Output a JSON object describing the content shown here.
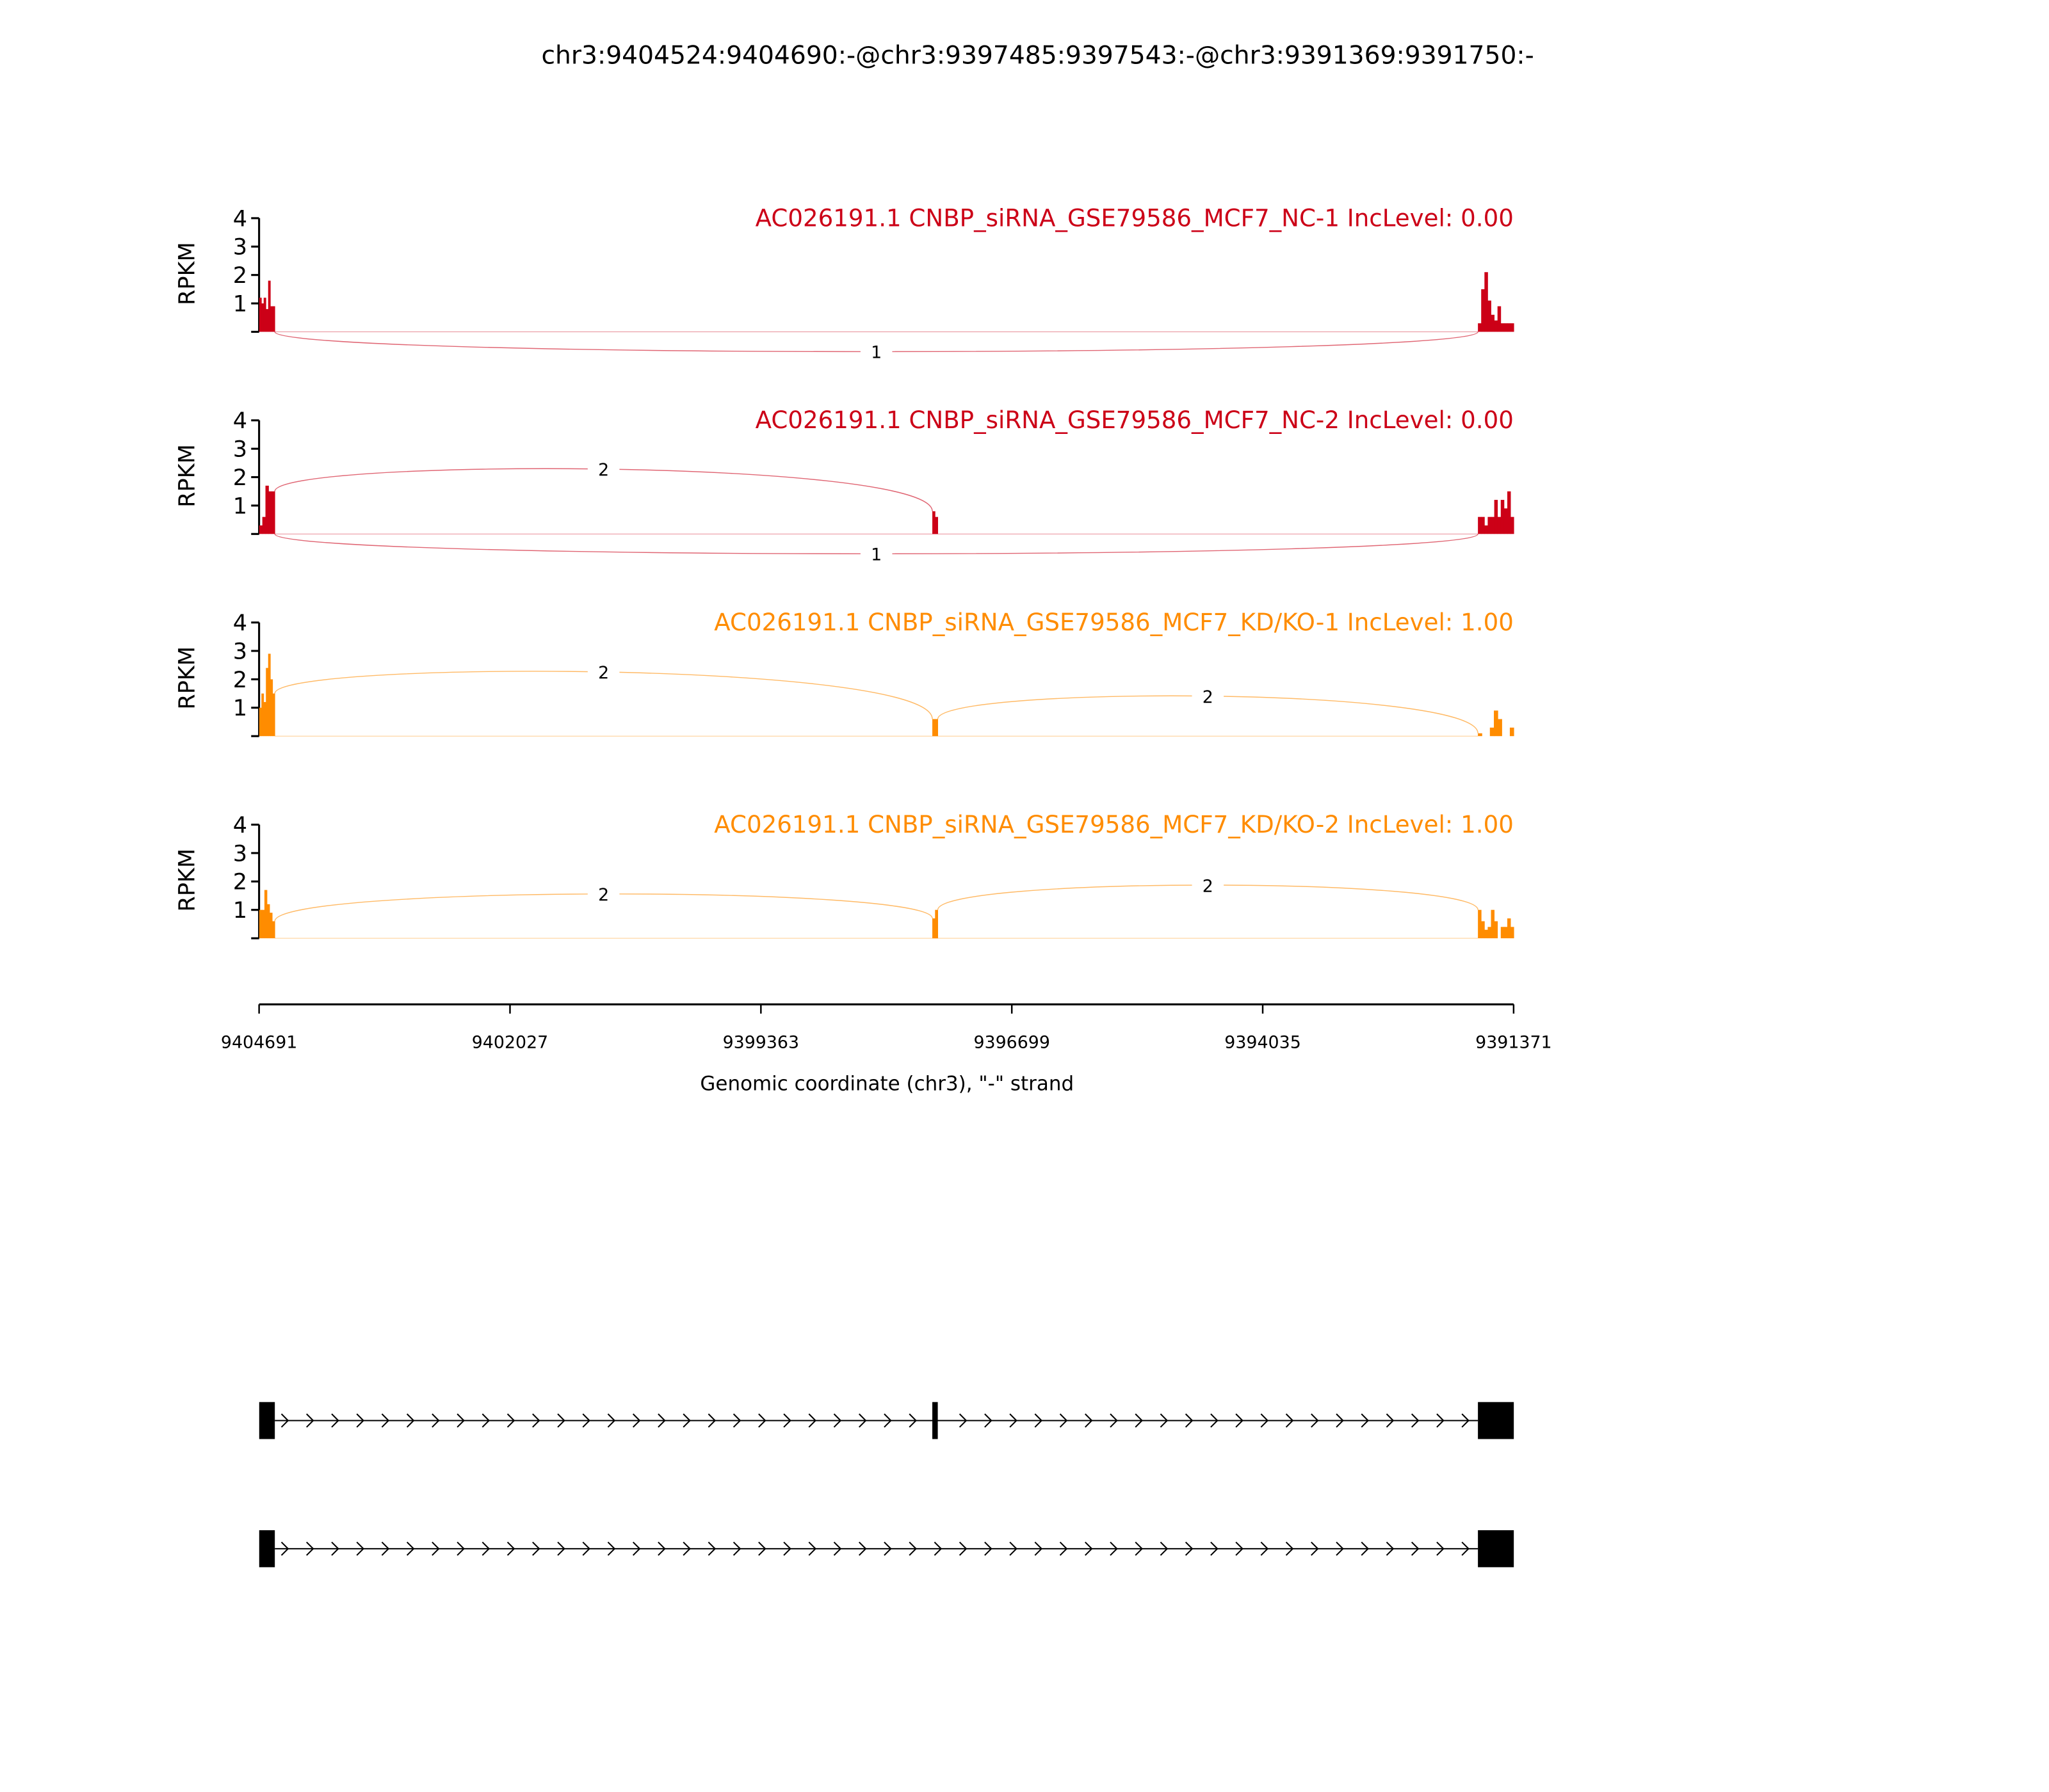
{
  "chart_data": {
    "type": "bar",
    "title": "chr3:9404524:9404690:-@chr3:9397485:9397543:-@chr3:9391369:9391750:-",
    "xlabel": "Genomic coordinate (chr3), \"-\" strand",
    "ylabel": "RPKM",
    "xlim": [
      9404691,
      9391371
    ],
    "x_ticks": [
      "9404691",
      "9402027",
      "9399363",
      "9396699",
      "9394035",
      "9391371"
    ],
    "ylim": [
      0,
      4
    ],
    "y_ticks": [
      "1",
      "2",
      "3",
      "4"
    ],
    "grid": false,
    "exons": [
      {
        "start": 9404524,
        "end": 9404690
      },
      {
        "start": 9397485,
        "end": 9397543
      },
      {
        "start": 9391369,
        "end": 9391750
      }
    ],
    "tracks": [
      {
        "label": "AC026191.1 CNBP_siRNA_GSE79586_MCF7_NC-1 IncLevel: 0.00",
        "color": "#cc0017",
        "coverage": [
          [
            1.2,
            1.0,
            1.2,
            0.8,
            1.8,
            0.9,
            0.9
          ],
          [],
          [
            0.3,
            1.5,
            2.1,
            1.1,
            0.6,
            0.4,
            0.9,
            0.3,
            0.3,
            0.3,
            0.3
          ]
        ],
        "junctions": [
          {
            "from": 0,
            "to": 2,
            "count": "1",
            "side": "below"
          }
        ]
      },
      {
        "label": "AC026191.1 CNBP_siRNA_GSE79586_MCF7_NC-2 IncLevel: 0.00",
        "color": "#cc0017",
        "coverage": [
          [
            0.3,
            0.6,
            1.7,
            1.5,
            1.5
          ],
          [
            0.8,
            0.6
          ],
          [
            0.6,
            0.6,
            0.3,
            0.6,
            0.6,
            1.2,
            0.6,
            1.2,
            0.9,
            1.5,
            0.6
          ]
        ],
        "junctions": [
          {
            "from": 0,
            "to": 1,
            "count": "2",
            "side": "above"
          },
          {
            "from": 0,
            "to": 2,
            "count": "1",
            "side": "below"
          }
        ]
      },
      {
        "label": "AC026191.1 CNBP_siRNA_GSE79586_MCF7_KD/KO-1 IncLevel: 1.00",
        "color": "#ff8c00",
        "coverage": [
          [
            1.0,
            1.5,
            1.2,
            2.4,
            2.9,
            2.0,
            1.5
          ],
          [
            0.6
          ],
          [
            0.1,
            0,
            0,
            0.3,
            0.9,
            0.6,
            0,
            0,
            0.3
          ]
        ],
        "junctions": [
          {
            "from": 0,
            "to": 1,
            "count": "2",
            "side": "above"
          },
          {
            "from": 1,
            "to": 2,
            "count": "2",
            "side": "above"
          }
        ]
      },
      {
        "label": "AC026191.1 CNBP_siRNA_GSE79586_MCF7_KD/KO-2 IncLevel: 1.00",
        "color": "#ff8c00",
        "coverage": [
          [
            1.0,
            1.0,
            1.7,
            1.2,
            0.9,
            0.6
          ],
          [
            0.7,
            1.0
          ],
          [
            1.0,
            0.6,
            0.3,
            0.4,
            1.0,
            0.6,
            0,
            0.4,
            0.4,
            0.7,
            0.4
          ]
        ],
        "junctions": [
          {
            "from": 0,
            "to": 1,
            "count": "2",
            "side": "above"
          },
          {
            "from": 1,
            "to": 2,
            "count": "2",
            "side": "above"
          }
        ]
      }
    ],
    "isoforms": [
      {
        "exons": [
          0,
          1,
          2
        ]
      },
      {
        "exons": [
          0,
          2
        ]
      }
    ]
  }
}
